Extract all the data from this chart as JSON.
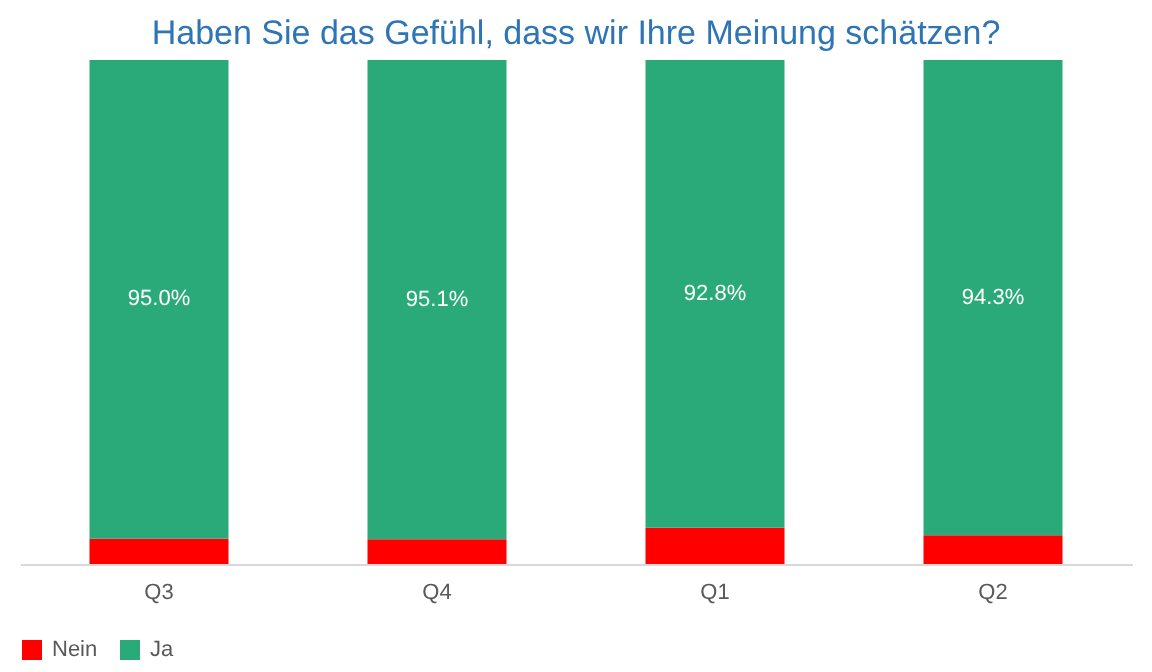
{
  "chart_data": {
    "type": "bar",
    "title": "Haben Sie das Gefühl, dass wir Ihre Meinung schätzen?",
    "categories": [
      "Q3",
      "Q4",
      "Q1",
      "Q2"
    ],
    "stacked": true,
    "legend": "bottom",
    "grid": false,
    "series": [
      {
        "name": "Nein",
        "color": "#ff0000",
        "values": [
          5.0,
          4.9,
          7.2,
          5.7
        ]
      },
      {
        "name": "Ja",
        "color": "#2aaa78",
        "values": [
          95.0,
          95.1,
          92.8,
          94.3
        ],
        "value_labels": [
          "95.0%",
          "95.1%",
          "92.8%",
          "94.3%"
        ]
      }
    ]
  }
}
